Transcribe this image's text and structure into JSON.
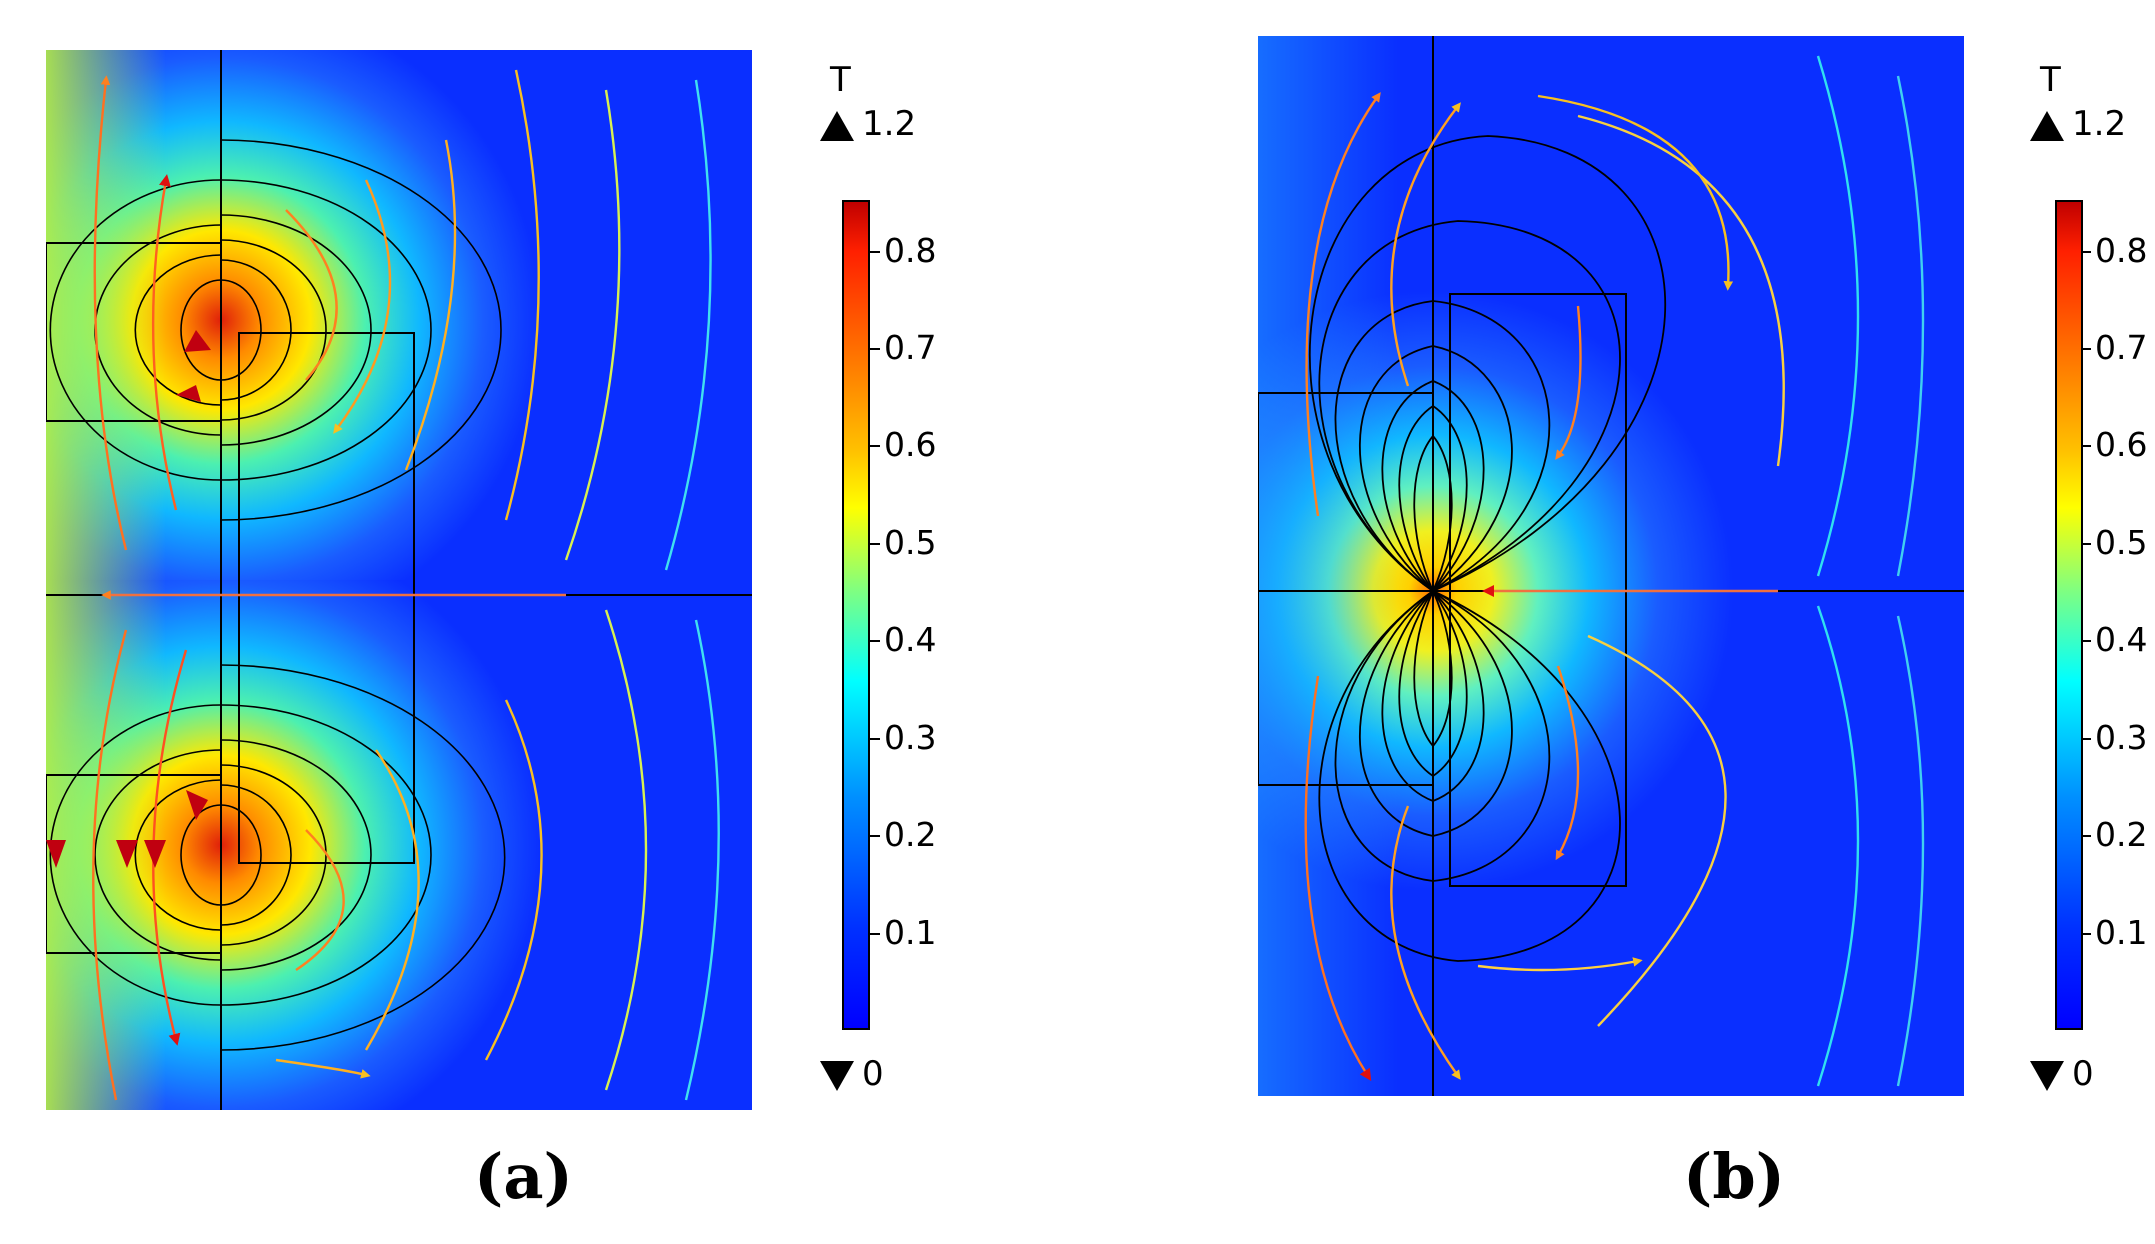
{
  "figure": {
    "panels": [
      {
        "id": "a",
        "caption": "(a)",
        "colorbar": {
          "unit": "T",
          "max_label": "1.2",
          "min_label": "0",
          "ticks": [
            "0.8",
            "0.7",
            "0.6",
            "0.5",
            "0.4",
            "0.3",
            "0.2",
            "0.1"
          ],
          "range": [
            0,
            0.85
          ]
        }
      },
      {
        "id": "b",
        "caption": "(b)",
        "colorbar": {
          "unit": "T",
          "max_label": "1.2",
          "min_label": "0",
          "ticks": [
            "0.8",
            "0.7",
            "0.6",
            "0.5",
            "0.4",
            "0.3",
            "0.2",
            "0.1"
          ],
          "range": [
            0,
            0.85
          ]
        }
      }
    ]
  },
  "colors": {
    "jet": [
      "#00008f",
      "#0000ff",
      "#0080ff",
      "#00ffff",
      "#80ff80",
      "#ffff00",
      "#ff8000",
      "#ff0000",
      "#800000"
    ],
    "background_field": "#0a2fff"
  }
}
